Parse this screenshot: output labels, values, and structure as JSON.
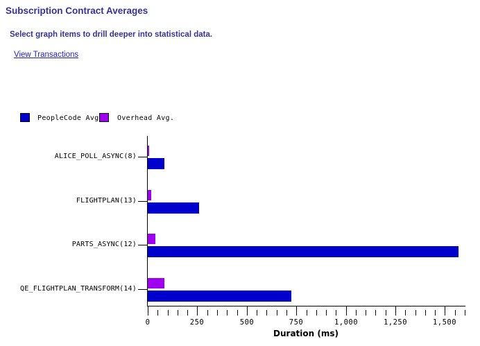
{
  "header": {
    "title": "Subscription Contract Averages",
    "subtitle": "Select graph items to drill deeper into statistical data.",
    "link_label": "View Transactions"
  },
  "colors": {
    "heading": "#333399",
    "link": "#2222CC",
    "peoplecode": "#0000CC",
    "overhead": "#A000F0",
    "axis": "#000000"
  },
  "chart_data": {
    "type": "bar",
    "orientation": "horizontal",
    "title": "Subscription Contract Averages",
    "categories": [
      "ALICE_POLL_ASYNC(8)",
      "FLIGHTPLAN(13)",
      "PARTS_ASYNC(12)",
      "QE_FLIGHTPLAN_TRANSFORM(14)"
    ],
    "series": [
      {
        "name": "PeopleCode Avg.",
        "color_key": "peoplecode",
        "values": [
          85,
          260,
          1570,
          725
        ]
      },
      {
        "name": "Overhead Avg.",
        "color_key": "overhead",
        "values": [
          8,
          18,
          40,
          85
        ]
      }
    ],
    "xlabel": "Duration (ms)",
    "xlim": [
      0,
      1600
    ],
    "x_major_ticks": [
      0,
      250,
      500,
      750,
      1000,
      1250,
      1500
    ],
    "x_major_tick_labels": [
      "0",
      "250",
      "500",
      "750",
      "1,000",
      "1,250",
      "1,500"
    ],
    "x_minor_tick_step": 50,
    "legend_position": "top-left",
    "grid": false
  }
}
